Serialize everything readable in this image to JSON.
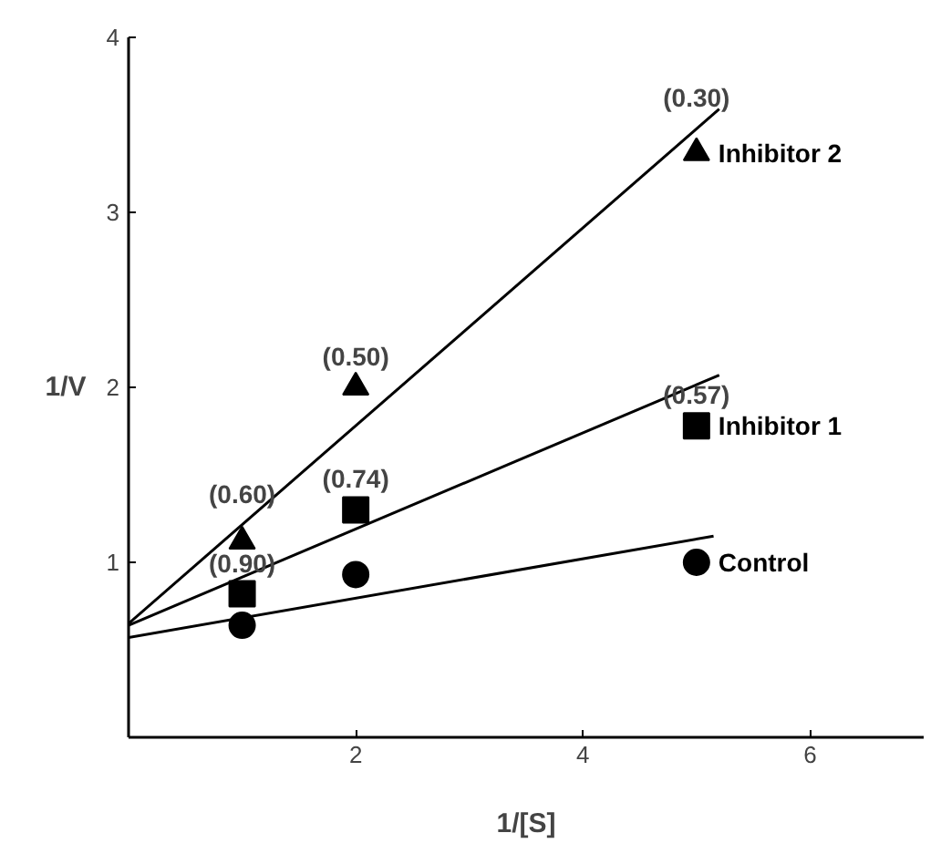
{
  "chart_data": {
    "type": "scatter",
    "xlabel": "1/[S]",
    "ylabel": "1/V",
    "xlim": [
      0,
      7
    ],
    "ylim": [
      0,
      4
    ],
    "xticks": [
      2,
      4,
      6
    ],
    "yticks": [
      1,
      2,
      3,
      4
    ],
    "grid": false,
    "series": [
      {
        "name": "Control",
        "color": "#000000",
        "marker": "circle",
        "x": [
          1,
          2,
          5
        ],
        "values": [
          0.64,
          0.93,
          1.0
        ]
      },
      {
        "name": "Inhibitor 1",
        "color": "#000000",
        "marker": "square",
        "x": [
          1,
          2,
          5
        ],
        "values": [
          0.82,
          1.3,
          1.78
        ]
      },
      {
        "name": "Inhibitor 2",
        "color": "#000000",
        "marker": "triangle",
        "x": [
          1,
          2,
          5
        ],
        "values": [
          1.12,
          2.0,
          3.34
        ]
      },
      {
        "type": "line",
        "color": "#000000",
        "line_style": "solid",
        "x": [
          0,
          5.15
        ],
        "values": [
          0.57,
          1.15
        ]
      },
      {
        "type": "line",
        "color": "#000000",
        "line_style": "solid",
        "x": [
          0,
          5.2
        ],
        "values": [
          0.64,
          2.07
        ]
      },
      {
        "type": "line",
        "color": "#000000",
        "line_style": "solid",
        "x": [
          0,
          5.2
        ],
        "values": [
          0.65,
          3.59
        ]
      }
    ],
    "annotations": [
      {
        "text": "(0.90)",
        "x": 1,
        "y": 0.82
      },
      {
        "text": "(0.60)",
        "x": 1,
        "y": 1.12
      },
      {
        "text": "(0.74)",
        "x": 2,
        "y": 1.3
      },
      {
        "text": "(0.50)",
        "x": 2,
        "y": 2.0
      },
      {
        "text": "(0.57)",
        "x": 5,
        "y": 1.78
      },
      {
        "text": "(0.30)",
        "x": 5,
        "y": 3.34
      }
    ]
  }
}
